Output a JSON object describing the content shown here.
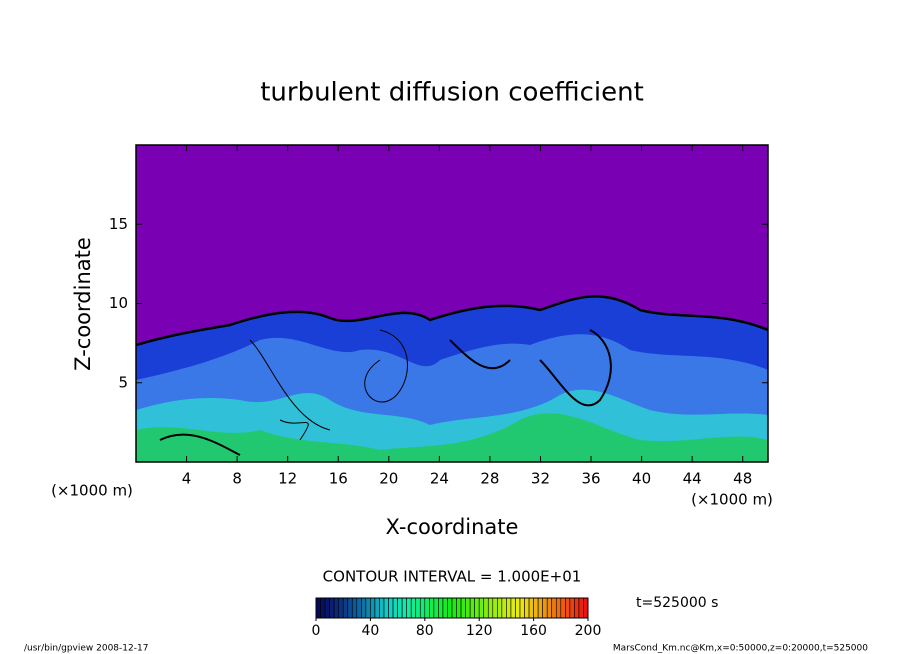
{
  "chart_data": {
    "type": "contour",
    "title": "turbulent diffusion coefficient",
    "x_label": "X-coordinate",
    "y_label": "Z-coordinate",
    "x_unit": "(×1000 m)",
    "y_unit": "(×1000 m)",
    "xlim": [
      0,
      50
    ],
    "xticks": [
      4,
      8,
      12,
      16,
      20,
      24,
      28,
      32,
      36,
      40,
      44,
      48
    ],
    "ylim": [
      0,
      20
    ],
    "yticks": [
      5,
      10,
      15
    ],
    "contour_interval": "CONTOUR INTERVAL = 1.000E+01",
    "colorbar_lim": [
      0,
      200
    ],
    "colorbar_ticks": [
      0,
      40,
      80,
      120,
      160,
      200
    ],
    "time_label": "t=525000 s",
    "footer_left": "/usr/bin/gpview  2008-12-17",
    "footer_right": "MarsCond_Km.nc@Km,x=0:50000,z=0:20000,t=525000"
  }
}
